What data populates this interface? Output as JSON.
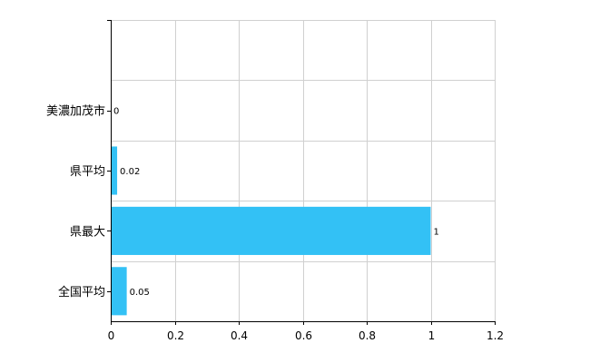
{
  "chart_data": {
    "type": "bar",
    "orientation": "horizontal",
    "categories": [
      "美濃加茂市",
      "県平均",
      "県最大",
      "全国平均"
    ],
    "values": [
      0,
      0.02,
      1,
      0.05
    ],
    "value_labels": [
      "0",
      "0.02",
      "1",
      "0.05"
    ],
    "xlim": [
      0,
      1.2
    ],
    "xticks": [
      0,
      0.2,
      0.4,
      0.6,
      0.8,
      1,
      1.2
    ],
    "xtick_labels": [
      "0",
      "0.2",
      "0.4",
      "0.6",
      "0.8",
      "1",
      "1.2"
    ],
    "grid": true,
    "bar_color": "#33c1f5",
    "grid_color": "#d0d0d0",
    "axis_color": "#000000"
  }
}
